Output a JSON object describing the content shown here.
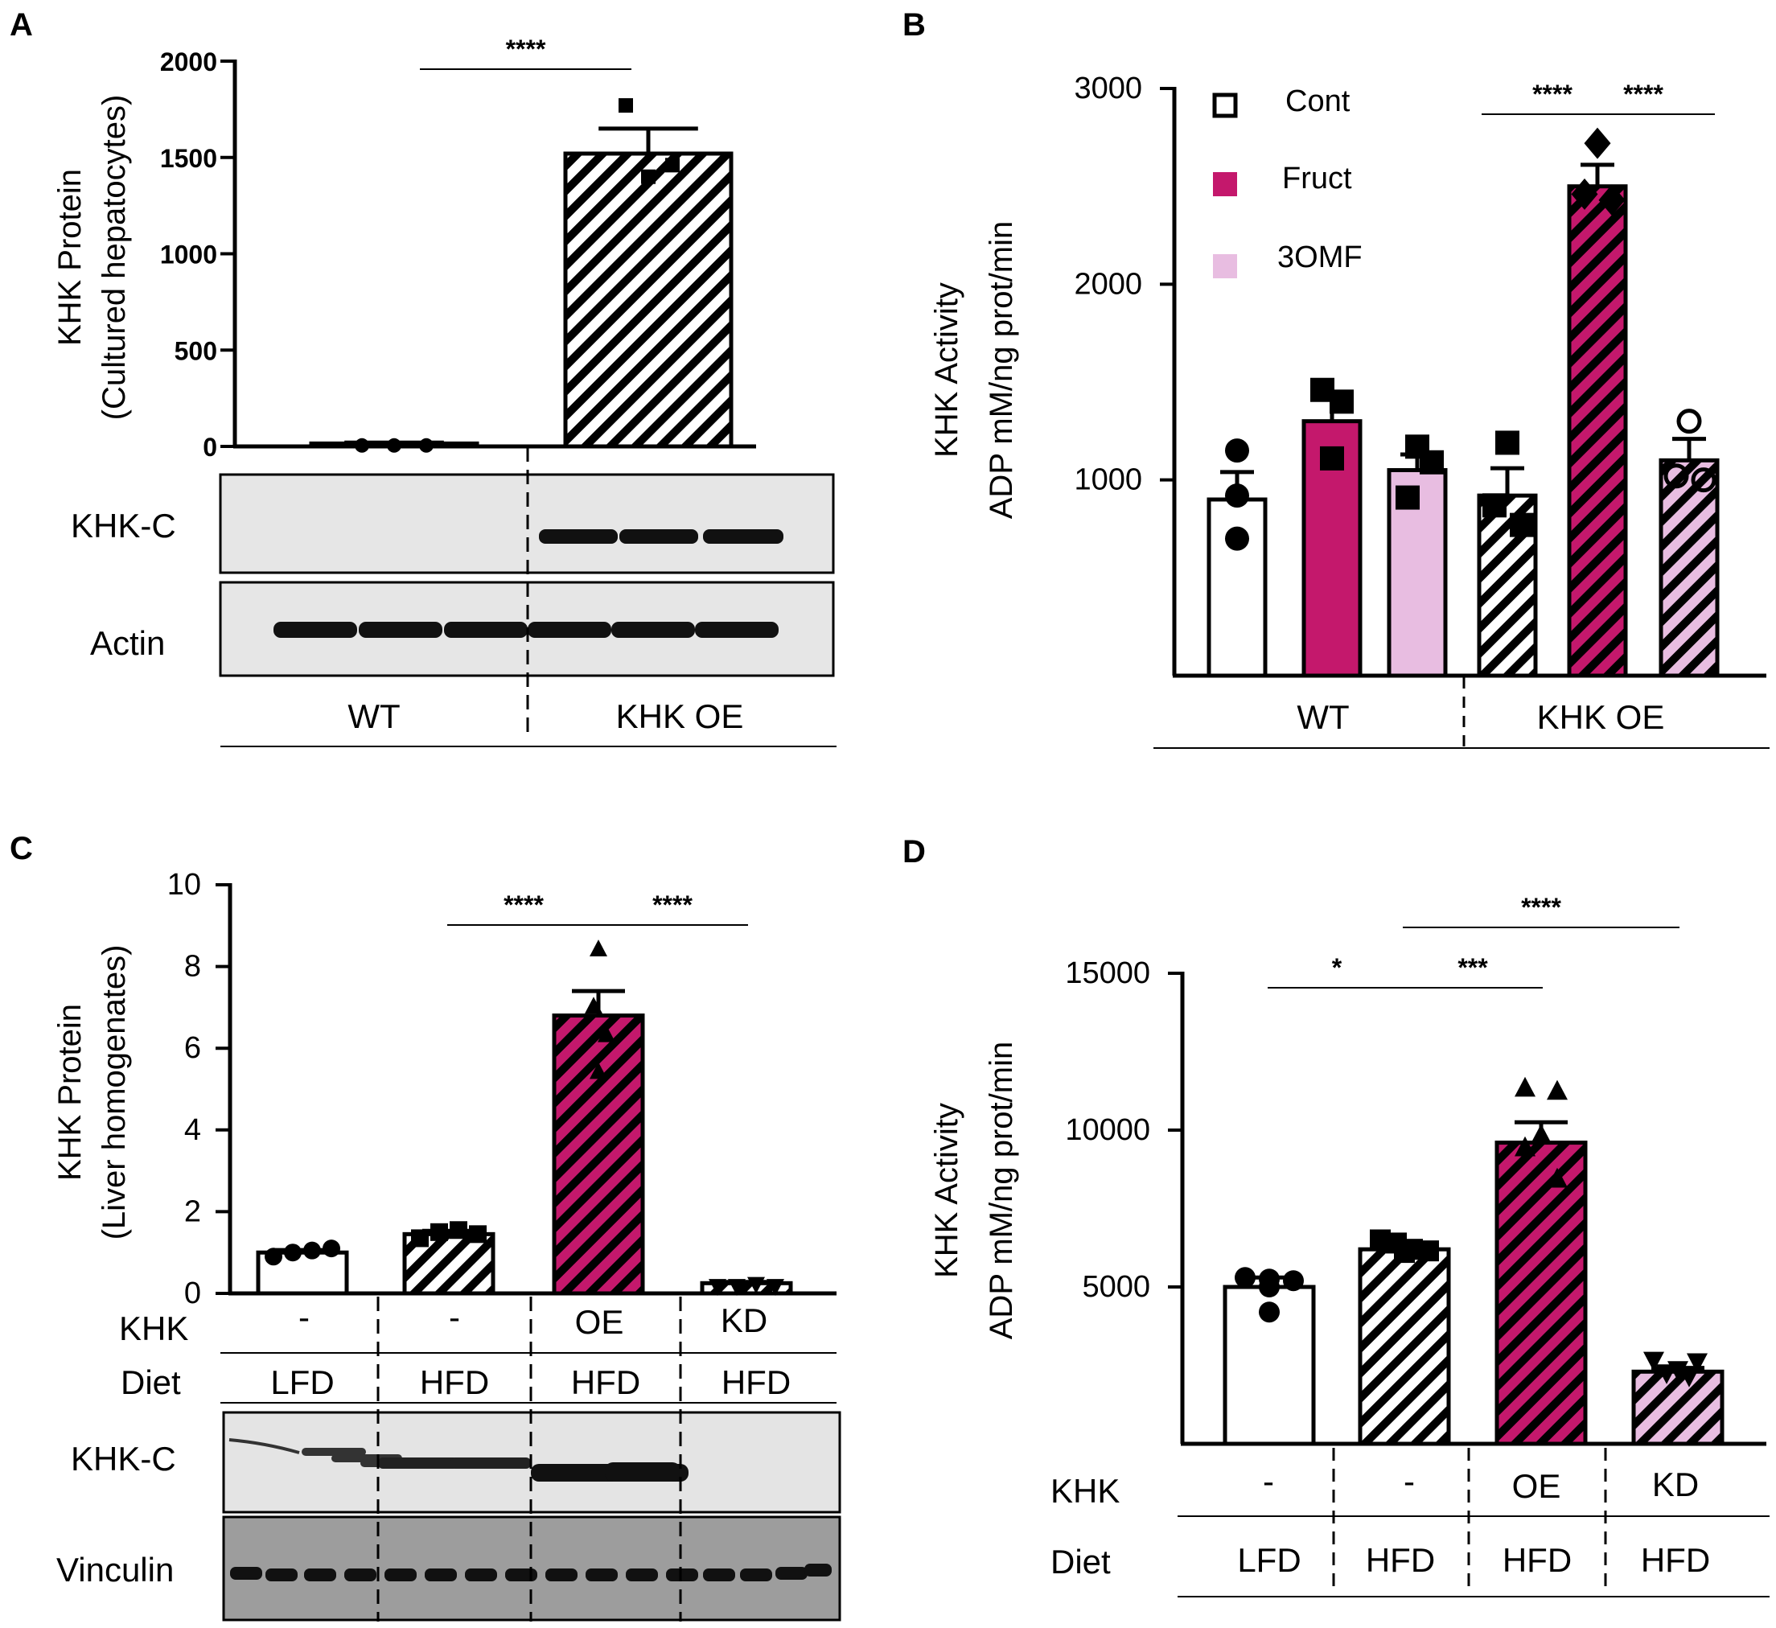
{
  "figure": {
    "panels": [
      "A",
      "B",
      "C",
      "D"
    ]
  },
  "colors": {
    "magenta": "#c4186c",
    "pink": "#e8bde1",
    "white": "#ffffff",
    "black": "#000000"
  },
  "chart_data": [
    {
      "id": "A",
      "type": "bar",
      "ylabel": [
        "KHK Protein",
        "(Cultured hepatocytes)"
      ],
      "ylim": [
        0,
        2000
      ],
      "yticks": [
        0,
        500,
        1000,
        1500,
        2000
      ],
      "categories": [
        "WT",
        "KHK OE"
      ],
      "bars": [
        {
          "group": "WT",
          "mean": 15,
          "sem": 5,
          "fill": "white",
          "hatch": false,
          "points": [
            5,
            5,
            5
          ],
          "marker": "circle"
        },
        {
          "group": "KHK OE",
          "mean": 1520,
          "sem": 130,
          "fill": "white",
          "hatch": true,
          "points": [
            1770,
            1400,
            1460
          ],
          "marker": "square"
        }
      ],
      "significance": [
        {
          "from": 0,
          "to": 1,
          "label": "****"
        }
      ],
      "blot_rows": [
        "KHK-C",
        "Actin"
      ],
      "group_labels": [
        "WT",
        "KHK OE"
      ]
    },
    {
      "id": "B",
      "type": "bar",
      "ylabel": [
        "KHK Activity",
        "ADP mM/ng prot/min"
      ],
      "ylim": [
        0,
        3000
      ],
      "yticks": [
        1000,
        2000,
        3000
      ],
      "legend": [
        {
          "label": "Cont",
          "fill": "white"
        },
        {
          "label": "Fruct",
          "fill": "magenta"
        },
        {
          "label": "3OMF",
          "fill": "pink"
        }
      ],
      "bars": [
        {
          "group": "WT",
          "treatment": "Cont",
          "mean": 900,
          "sem": 140,
          "fill": "white",
          "hatch": false,
          "points": [
            1150,
            920,
            700
          ],
          "marker": "circle"
        },
        {
          "group": "WT",
          "treatment": "Fruct",
          "mean": 1300,
          "sem": 110,
          "fill": "magenta",
          "hatch": false,
          "points": [
            1460,
            1400,
            1110
          ],
          "marker": "square"
        },
        {
          "group": "WT",
          "treatment": "3OMF",
          "mean": 1050,
          "sem": 80,
          "fill": "pink",
          "hatch": false,
          "points": [
            1170,
            1090,
            910
          ],
          "marker": "square"
        },
        {
          "group": "KHK OE",
          "treatment": "Cont",
          "mean": 920,
          "sem": 140,
          "fill": "white",
          "hatch": true,
          "points": [
            1190,
            870,
            770
          ],
          "marker": "square"
        },
        {
          "group": "KHK OE",
          "treatment": "Fruct",
          "mean": 2500,
          "sem": 110,
          "fill": "magenta",
          "hatch": true,
          "points": [
            2720,
            2460,
            2430
          ],
          "marker": "diamond"
        },
        {
          "group": "KHK OE",
          "treatment": "3OMF",
          "mean": 1100,
          "sem": 110,
          "fill": "pink",
          "hatch": true,
          "points": [
            1300,
            1020,
            1000
          ],
          "marker": "open-circle"
        }
      ],
      "significance": [
        {
          "from": 3,
          "to": 4,
          "label": "****"
        },
        {
          "from": 4,
          "to": 5,
          "label": "****"
        }
      ],
      "group_labels": [
        "WT",
        "KHK OE"
      ]
    },
    {
      "id": "C",
      "type": "bar",
      "ylabel": [
        "KHK Protein",
        "(Liver homogenates)"
      ],
      "ylim": [
        0,
        10
      ],
      "yticks": [
        0,
        2,
        4,
        6,
        8,
        10
      ],
      "bars": [
        {
          "khk": "-",
          "diet": "LFD",
          "mean": 1.0,
          "sem": 0.06,
          "fill": "white",
          "hatch": false,
          "points": [
            0.9,
            1.0,
            1.05,
            1.1
          ],
          "marker": "circle"
        },
        {
          "khk": "-",
          "diet": "HFD",
          "mean": 1.45,
          "sem": 0.08,
          "fill": "white",
          "hatch": true,
          "points": [
            1.35,
            1.5,
            1.55,
            1.45
          ],
          "marker": "square"
        },
        {
          "khk": "OE",
          "diet": "HFD",
          "mean": 6.8,
          "sem": 0.6,
          "fill": "magenta",
          "hatch": true,
          "points": [
            8.4,
            7.0,
            6.3,
            5.4
          ],
          "marker": "triangle"
        },
        {
          "khk": "KD",
          "diet": "HFD",
          "mean": 0.25,
          "sem": 0.03,
          "fill": "white",
          "hatch": true,
          "points": [
            0.2,
            0.2,
            0.25,
            0.2
          ],
          "marker": "triangle-down"
        }
      ],
      "significance": [
        {
          "from": 1,
          "to": 2,
          "label": "****"
        },
        {
          "from": 2,
          "to": 3,
          "label": "****"
        }
      ],
      "row_labels": {
        "khk_title": "KHK",
        "diet_title": "Diet",
        "khk": [
          "-",
          "-",
          "OE",
          "KD"
        ],
        "diet": [
          "LFD",
          "HFD",
          "HFD",
          "HFD"
        ]
      },
      "blot_rows": [
        "KHK-C",
        "Vinculin"
      ]
    },
    {
      "id": "D",
      "type": "bar",
      "ylabel": [
        "KHK Activity",
        "ADP mM/ng prot/min"
      ],
      "ylim": [
        0,
        15000
      ],
      "yticks": [
        5000,
        10000,
        15000
      ],
      "bars": [
        {
          "khk": "-",
          "diet": "LFD",
          "mean": 5000,
          "sem": 300,
          "fill": "white",
          "hatch": false,
          "points": [
            5300,
            5250,
            5200,
            5000,
            4200
          ],
          "marker": "circle"
        },
        {
          "khk": "-",
          "diet": "HFD",
          "mean": 6200,
          "sem": 150,
          "fill": "white",
          "hatch": true,
          "points": [
            6500,
            6400,
            6200,
            6150,
            6100
          ],
          "marker": "square"
        },
        {
          "khk": "OE",
          "diet": "HFD",
          "mean": 9600,
          "sem": 650,
          "fill": "magenta",
          "hatch": true,
          "points": [
            11300,
            11200,
            9800,
            9400,
            8400
          ],
          "marker": "triangle"
        },
        {
          "khk": "KD",
          "diet": "HFD",
          "mean": 2300,
          "sem": 120,
          "fill": "pink",
          "hatch": true,
          "points": [
            2700,
            2650,
            2400,
            2300,
            2200
          ],
          "marker": "triangle-down"
        }
      ],
      "significance": [
        {
          "from": 0,
          "to": 1,
          "label": "*"
        },
        {
          "from": 1,
          "to": 2,
          "label": "***"
        },
        {
          "from": 1,
          "to": 3,
          "label": "****"
        }
      ],
      "row_labels": {
        "khk_title": "KHK",
        "diet_title": "Diet",
        "khk": [
          "-",
          "-",
          "OE",
          "KD"
        ],
        "diet": [
          "LFD",
          "HFD",
          "HFD",
          "HFD"
        ]
      }
    }
  ]
}
